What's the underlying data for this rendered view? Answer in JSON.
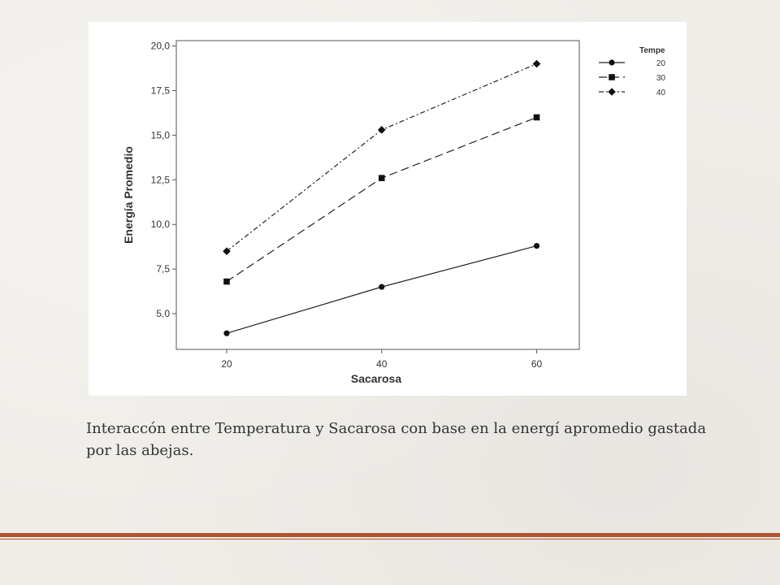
{
  "slide": {
    "caption": "Interaccón entre Temperatura y Sacarosa con base en la energí apromedio gastada por las abejas.",
    "accent_color": "#b4522e"
  },
  "chart_data": {
    "type": "line",
    "title": "",
    "xlabel": "Sacarosa",
    "ylabel": "Energía Promedio",
    "x": [
      20,
      40,
      60
    ],
    "x_tick_labels": [
      "20",
      "40",
      "60"
    ],
    "y_tick_labels": [
      "5,0",
      "7,5",
      "10,0",
      "12,5",
      "15,0",
      "17,5",
      "20,0"
    ],
    "y_ticks": [
      5.0,
      7.5,
      10.0,
      12.5,
      15.0,
      17.5,
      20.0
    ],
    "ylim": [
      3.0,
      20.3
    ],
    "xlim": [
      13.5,
      65.5
    ],
    "grid": false,
    "legend_title": "Tempe",
    "legend_position": "top-right outside",
    "series": [
      {
        "name": "20",
        "values": [
          3.9,
          6.5,
          8.8
        ],
        "marker": "circle",
        "dash": "solid"
      },
      {
        "name": "30",
        "values": [
          6.8,
          12.6,
          16.0
        ],
        "marker": "square",
        "dash": "dashed"
      },
      {
        "name": "40",
        "values": [
          8.5,
          15.3,
          19.0
        ],
        "marker": "diamond",
        "dash": "dash-dot"
      }
    ]
  }
}
